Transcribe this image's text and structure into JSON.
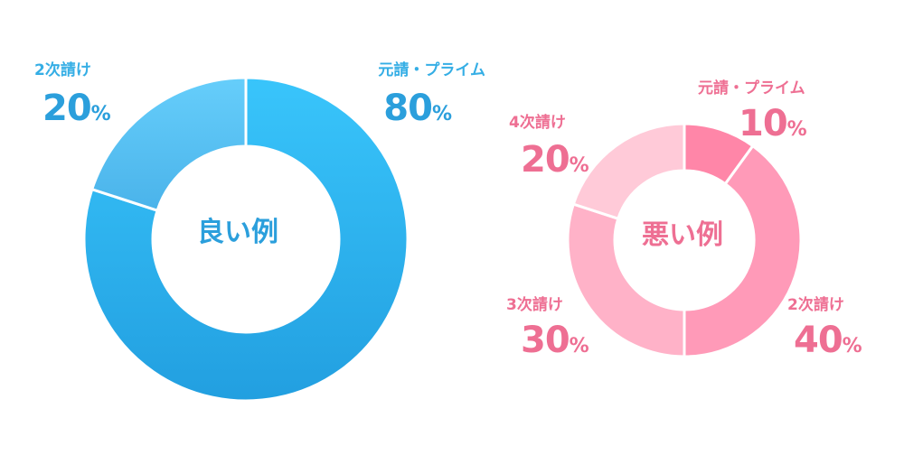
{
  "chart_data": [
    {
      "type": "pie",
      "title": "良い例",
      "unit": "%",
      "slices": [
        {
          "label": "元請・プライム",
          "value": 80,
          "color": "#2fb4f1"
        },
        {
          "label": "2次請け",
          "value": 20,
          "color": "#5ccaf8"
        }
      ]
    },
    {
      "type": "pie",
      "title": "悪い例",
      "unit": "%",
      "slices": [
        {
          "label": "元請・プライム",
          "value": 10,
          "color": "#ff86a8"
        },
        {
          "label": "2次請け",
          "value": 40,
          "color": "#ff9ab8"
        },
        {
          "label": "3次請け",
          "value": 30,
          "color": "#ffb2c8"
        },
        {
          "label": "4次請け",
          "value": 20,
          "color": "#ffcad8"
        }
      ]
    }
  ]
}
